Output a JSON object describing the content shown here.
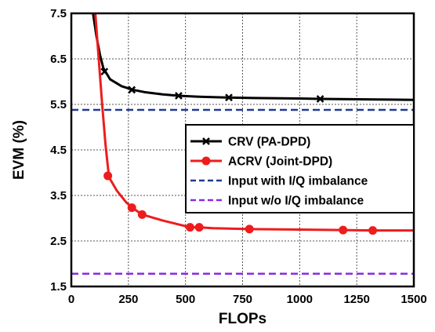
{
  "chart_data": {
    "type": "line",
    "xlabel": "FLOPs",
    "ylabel": "EVM (%)",
    "xlim": [
      0,
      1500
    ],
    "ylim": [
      1.5,
      7.5
    ],
    "x_ticks": [
      0,
      250,
      500,
      750,
      1000,
      1250,
      1500
    ],
    "y_ticks": [
      1.5,
      2.5,
      3.5,
      4.5,
      5.5,
      6.5,
      7.5
    ],
    "x_tick_labels": [
      "0",
      "250",
      "500",
      "750",
      "1000",
      "1250",
      "1500"
    ],
    "y_tick_labels": [
      "1.5",
      "2.5",
      "3.5",
      "4.5",
      "5.5",
      "6.5",
      "7.5"
    ],
    "grid": true,
    "legend_position": "center-right",
    "series": [
      {
        "name": "CRV (PA-DPD)",
        "color": "#000000",
        "style": "solid",
        "marker": "x",
        "curve_x": [
          95,
          110,
          125,
          140,
          170,
          220,
          270,
          320,
          400,
          470,
          550,
          680,
          800,
          1000,
          1090,
          1300,
          1500
        ],
        "curve_y": [
          7.5,
          7.0,
          6.6,
          6.3,
          6.05,
          5.9,
          5.82,
          5.77,
          5.72,
          5.69,
          5.67,
          5.65,
          5.64,
          5.63,
          5.62,
          5.61,
          5.6
        ],
        "marker_x": [
          145,
          265,
          470,
          690,
          1090
        ],
        "marker_y": [
          6.22,
          5.82,
          5.69,
          5.65,
          5.62
        ]
      },
      {
        "name": "ACRV (Joint-DPD)",
        "color": "#ee1c1c",
        "style": "solid",
        "marker": "o",
        "curve_x": [
          105,
          120,
          135,
          150,
          165,
          200,
          240,
          270,
          310,
          400,
          520,
          560,
          620,
          780,
          1000,
          1190,
          1320,
          1500
        ],
        "curve_y": [
          7.5,
          6.5,
          5.5,
          4.6,
          3.9,
          3.6,
          3.35,
          3.22,
          3.08,
          2.95,
          2.8,
          2.8,
          2.78,
          2.76,
          2.75,
          2.74,
          2.73,
          2.73
        ],
        "marker_x": [
          160,
          265,
          310,
          520,
          560,
          780,
          1190,
          1320
        ],
        "marker_y": [
          3.93,
          3.23,
          3.08,
          2.8,
          2.8,
          2.76,
          2.74,
          2.73
        ]
      },
      {
        "name": "Input with I/Q imbalance",
        "color": "#1f3a93",
        "style": "dashed",
        "marker": "none",
        "curve_x": [
          0,
          1500
        ],
        "curve_y": [
          5.38,
          5.38
        ]
      },
      {
        "name": "Input w/o I/Q imbalance",
        "color": "#8a2be2",
        "style": "dashed",
        "marker": "none",
        "curve_x": [
          0,
          1500
        ],
        "curve_y": [
          1.78,
          1.78
        ]
      }
    ]
  }
}
